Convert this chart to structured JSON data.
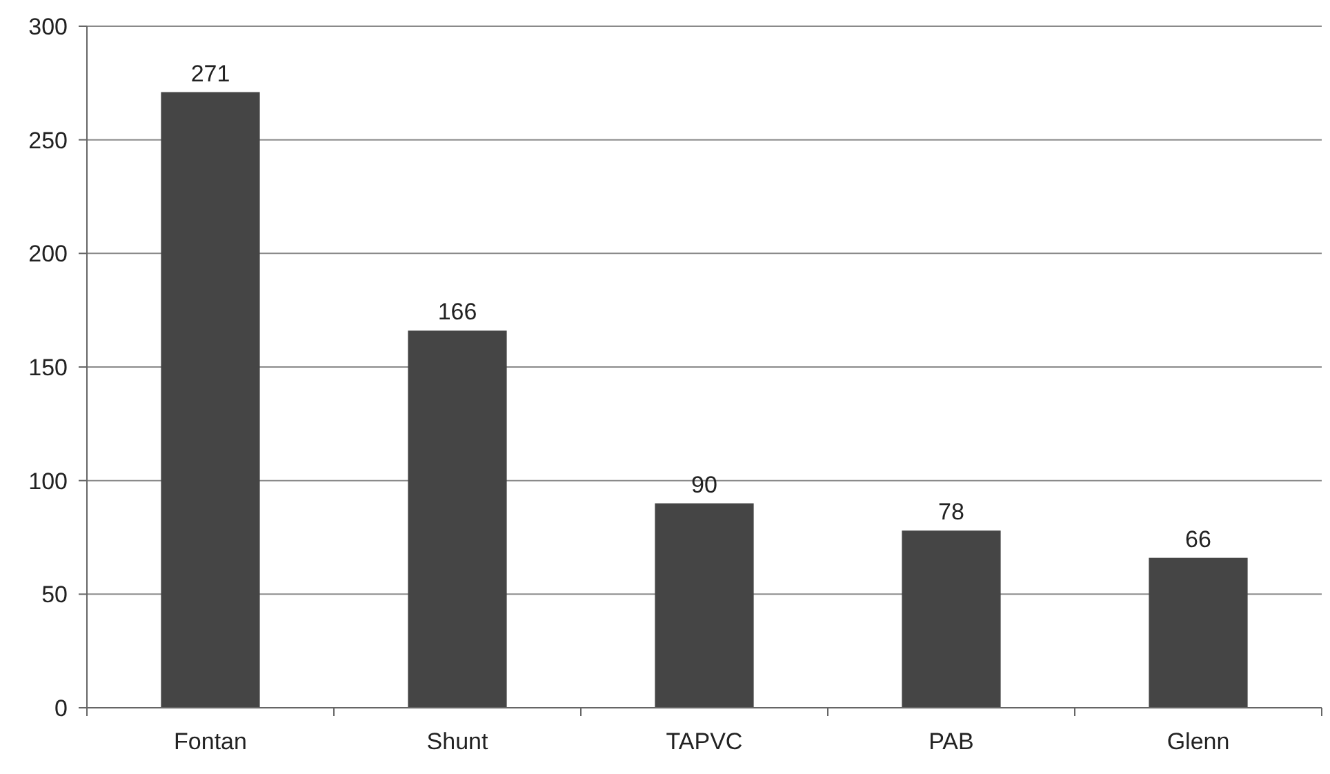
{
  "chart_data": {
    "type": "bar",
    "categories": [
      "Fontan",
      "Shunt",
      "TAPVC",
      "PAB",
      "Glenn"
    ],
    "values": [
      271,
      166,
      90,
      78,
      66
    ],
    "color": "#454545",
    "ylim": [
      0,
      300
    ],
    "yticks": [
      0,
      50,
      100,
      150,
      200,
      250,
      300
    ],
    "grid": "y",
    "data_labels": true
  }
}
